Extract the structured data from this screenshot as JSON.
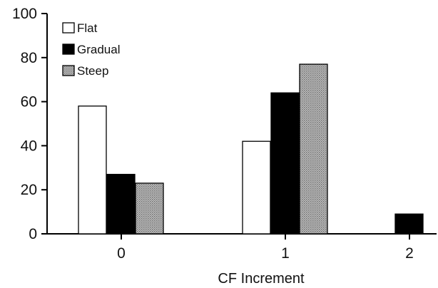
{
  "chart_data": {
    "type": "bar",
    "xlabel": "CF Increment",
    "ylabel": "",
    "ylim": [
      0,
      100
    ],
    "yticks": [
      0,
      20,
      40,
      60,
      80,
      100
    ],
    "categories": [
      "0",
      "1",
      "2"
    ],
    "series": [
      {
        "name": "Flat",
        "values": [
          58,
          42,
          0
        ],
        "color": "#ffffff",
        "pattern": "hollow"
      },
      {
        "name": "Gradual",
        "values": [
          27,
          64,
          9
        ],
        "color": "#000000",
        "pattern": "solid"
      },
      {
        "name": "Steep",
        "values": [
          23,
          77,
          0
        ],
        "color": "#9a9a9a",
        "pattern": "stipple"
      }
    ],
    "legend_position": "top-left",
    "grid": false
  }
}
